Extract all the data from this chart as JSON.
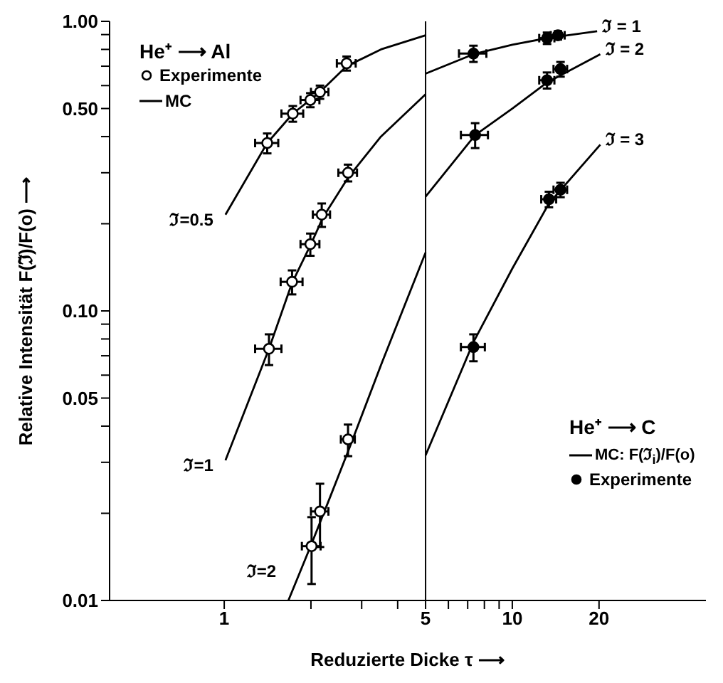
{
  "chart_data": {
    "type": "scatter",
    "xlabel": "Reduzierte Dicke τ ⟶",
    "ylabel": "Relative Intensität F(ℑ̃)/F(o) ⟶",
    "log": "xy",
    "xlim": [
      0.4,
      47
    ],
    "ylim": [
      0.01,
      1
    ],
    "legend": "top left",
    "xticks": [
      1,
      {
        "value": 2,
        "label": null
      },
      {
        "value": 3,
        "label": null
      },
      {
        "value": 4,
        "label": null
      },
      5,
      {
        "value": 6,
        "label": null
      },
      {
        "value": 7,
        "label": null
      },
      {
        "value": 8,
        "label": null
      },
      {
        "value": 9,
        "label": null
      },
      10,
      20
    ],
    "yticks": [
      0.01,
      {
        "value": 0.02,
        "label": null
      },
      {
        "value": 0.03,
        "label": null
      },
      {
        "value": 0.04,
        "label": null
      },
      0.05,
      {
        "value": 0.06,
        "label": null
      },
      {
        "value": 0.07,
        "label": null
      },
      {
        "value": 0.08,
        "label": null
      },
      {
        "value": 0.09,
        "label": null
      },
      {
        "value": 0.1,
        "label": "0.10"
      },
      {
        "value": 0.2,
        "label": null
      },
      {
        "value": 0.3,
        "label": null
      },
      {
        "value": 0.4,
        "label": null
      },
      {
        "value": 0.5,
        "label": "0.50"
      },
      {
        "value": 0.6,
        "label": null
      },
      {
        "value": 0.7,
        "label": null
      },
      {
        "value": 0.8,
        "label": null
      },
      {
        "value": 0.9,
        "label": null
      },
      {
        "value": 1,
        "label": "1.00"
      }
    ],
    "ref_lines": [
      {
        "axis": "x",
        "value": 5,
        "color": "#000000"
      }
    ],
    "annotations": [
      "He⁺ ⟶ Al",
      "MC",
      "He⁺ ⟶ C",
      "MC: F(ℑ$_{i}$)/F(o)"
    ],
    "series": [
      {
        "type": "line",
        "marker": "none",
        "name": "ℑ=0.5",
        "color": "#000000",
        "x": [
          1.01,
          1.41,
          1.73,
          2.15,
          2.66,
          3.5,
          5
        ],
        "values": [
          0.215,
          0.38,
          0.48,
          0.57,
          0.7,
          0.8,
          0.895
        ]
      },
      {
        "type": "line",
        "marker": "none",
        "name": "ℑ=1",
        "color": "#000000",
        "x": [
          1.01,
          1.43,
          1.72,
          2.0,
          2.2,
          2.7,
          3.5,
          5
        ],
        "values": [
          0.0305,
          0.074,
          0.125,
          0.17,
          0.21,
          0.29,
          0.4,
          0.56
        ]
      },
      {
        "type": "line",
        "marker": "none",
        "name": "ℑ=2",
        "color": "#000000",
        "x": [
          1.67,
          2.0,
          2.3,
          2.7,
          3.5,
          5
        ],
        "values": [
          0.01,
          0.0155,
          0.022,
          0.033,
          0.065,
          0.159
        ]
      },
      {
        "type": "line",
        "marker": "none",
        "name": "ℑ = 1",
        "color": "#000000",
        "x": [
          5,
          7.33,
          10,
          13.2,
          19.7
        ],
        "values": [
          0.66,
          0.77,
          0.83,
          0.875,
          0.925
        ]
      },
      {
        "type": "line",
        "marker": "none",
        "name": "ℑ = 2",
        "color": "#000000",
        "x": [
          5,
          7.43,
          10,
          13.2,
          20.2
        ],
        "values": [
          0.248,
          0.405,
          0.5,
          0.615,
          0.77
        ]
      },
      {
        "type": "line",
        "marker": "none",
        "name": "ℑ = 3",
        "color": "#000000",
        "x": [
          5,
          7.33,
          10,
          13.4,
          20.2
        ],
        "values": [
          0.0317,
          0.078,
          0.14,
          0.235,
          0.375
        ]
      },
      {
        "marker": "circle",
        "name": "Experimente",
        "color": "#000000",
        "x": [
          1.41,
          1.73,
          1.99,
          2.15,
          2.66,
          1.43,
          1.72,
          1.99,
          2.18,
          2.69,
          2.01,
          2.15,
          2.69
        ],
        "values": [
          0.38,
          0.48,
          0.535,
          0.57,
          0.716,
          0.074,
          0.126,
          0.17,
          0.215,
          0.3,
          0.0154,
          0.0203,
          0.036
        ],
        "errors": [
          0.03,
          0.03,
          0.03,
          0.03,
          0.04,
          0.009,
          0.012,
          0.015,
          0.02,
          0.02,
          0.004,
          0.005,
          0.0045
        ],
        "xerrors": [
          0.13,
          0.15,
          0.15,
          0.15,
          0.2,
          0.15,
          0.15,
          0.15,
          0.15,
          0.2,
          0.15,
          0.15,
          0.15
        ]
      },
      {
        "marker": "circle",
        "name": "Experimente",
        "color": "#000000",
        "x": [
          7.33,
          13.2,
          14.4,
          7.43,
          13.2,
          14.7,
          7.33,
          13.4,
          14.7
        ],
        "values": [
          0.774,
          0.875,
          0.895,
          0.405,
          0.626,
          0.684,
          0.075,
          0.243,
          0.262
        ],
        "errors": [
          0.05,
          0.04,
          0.03,
          0.04,
          0.04,
          0.04,
          0.008,
          0.015,
          0.015
        ],
        "xerrors": [
          0.8,
          0.8,
          0.8,
          0.8,
          0.8,
          0.8,
          0.7,
          0.8,
          0.8
        ]
      }
    ]
  }
}
